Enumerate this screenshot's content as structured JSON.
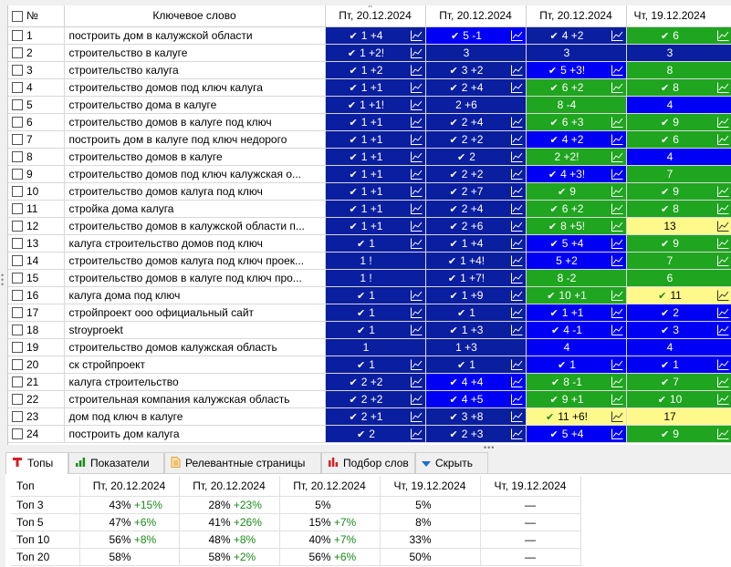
{
  "grid": {
    "headers": {
      "num": "№",
      "keyword": "Ключевое слово",
      "dates": [
        "Пт, 20.12.2024",
        "Пт, 20.12.2024",
        "Пт, 20.12.2024",
        "Чт, 19.12.2024"
      ]
    },
    "colors": {
      "dark_blue": "#0a1ea0",
      "blue": "#0000f5",
      "green": "#1fa51f",
      "yellow": "#fff98c"
    },
    "rows": [
      {
        "n": "1",
        "kw": "построить дом в калужской области",
        "c": [
          [
            "db",
            "✔",
            "1 +4",
            1
          ],
          [
            "b",
            "✔",
            "5 -1",
            1
          ],
          [
            "db",
            "✔",
            "4 +2",
            1
          ],
          [
            "g",
            "✔",
            "6",
            1
          ]
        ]
      },
      {
        "n": "2",
        "kw": "строительство в калуге",
        "c": [
          [
            "db",
            "✔",
            "1 +2!",
            1
          ],
          [
            "db",
            "",
            "3",
            0
          ],
          [
            "db",
            "",
            "3",
            0
          ],
          [
            "db",
            "",
            "3",
            0
          ]
        ]
      },
      {
        "n": "3",
        "kw": "строительство калуга",
        "c": [
          [
            "db",
            "✔",
            "1 +2",
            1
          ],
          [
            "db",
            "✔",
            "3 +2",
            1
          ],
          [
            "b",
            "✔",
            "5 +3!",
            1
          ],
          [
            "g",
            "",
            "8",
            0
          ]
        ]
      },
      {
        "n": "4",
        "kw": "строительство домов под ключ калуга",
        "c": [
          [
            "db",
            "✔",
            "1 +1",
            1
          ],
          [
            "db",
            "✔",
            "2 +4",
            1
          ],
          [
            "g",
            "✔",
            "6 +2",
            1
          ],
          [
            "g",
            "✔",
            "8",
            1
          ]
        ]
      },
      {
        "n": "5",
        "kw": "строительство дома в калуге",
        "c": [
          [
            "db",
            "✔",
            "1 +1!",
            1
          ],
          [
            "db",
            "",
            "2 +6",
            0
          ],
          [
            "g",
            "",
            "8 -4",
            0
          ],
          [
            "b",
            "",
            "4",
            0
          ]
        ]
      },
      {
        "n": "6",
        "kw": "строительство домов в калуге под ключ",
        "c": [
          [
            "db",
            "✔",
            "1 +1",
            1
          ],
          [
            "db",
            "✔",
            "2 +4",
            1
          ],
          [
            "g",
            "✔",
            "6 +3",
            1
          ],
          [
            "g",
            "✔",
            "9",
            1
          ]
        ]
      },
      {
        "n": "7",
        "kw": "построить дом в калуге под ключ недорого",
        "c": [
          [
            "db",
            "✔",
            "1 +1",
            1
          ],
          [
            "db",
            "✔",
            "2 +2",
            1
          ],
          [
            "b",
            "✔",
            "4 +2",
            1
          ],
          [
            "g",
            "✔",
            "6",
            1
          ]
        ]
      },
      {
        "n": "8",
        "kw": "строительство домов в калуге",
        "c": [
          [
            "db",
            "✔",
            "1 +1",
            1
          ],
          [
            "db",
            "✔",
            "2",
            1
          ],
          [
            "g",
            "",
            "2 +2!",
            1
          ],
          [
            "b",
            "",
            "4",
            0
          ]
        ]
      },
      {
        "n": "9",
        "kw": "строительство домов под ключ калужская о...",
        "c": [
          [
            "db",
            "✔",
            "1 +1",
            1
          ],
          [
            "db",
            "✔",
            "2 +2",
            1
          ],
          [
            "b",
            "✔",
            "4 +3!",
            1
          ],
          [
            "g",
            "",
            "7",
            0
          ]
        ]
      },
      {
        "n": "10",
        "kw": "строительство домов калуга под ключ",
        "c": [
          [
            "db",
            "✔",
            "1 +1",
            1
          ],
          [
            "db",
            "✔",
            "2 +7",
            1
          ],
          [
            "g",
            "✔",
            "9",
            1
          ],
          [
            "g",
            "✔",
            "9",
            1
          ]
        ]
      },
      {
        "n": "11",
        "kw": "стройка дома калуга",
        "c": [
          [
            "db",
            "✔",
            "1 +1",
            1
          ],
          [
            "db",
            "✔",
            "2 +4",
            1
          ],
          [
            "g",
            "✔",
            "6 +2",
            1
          ],
          [
            "g",
            "✔",
            "8",
            1
          ]
        ]
      },
      {
        "n": "12",
        "kw": "строительство домов в калужской области п...",
        "c": [
          [
            "db",
            "✔",
            "1 +1",
            1
          ],
          [
            "db",
            "✔",
            "2 +6",
            1
          ],
          [
            "g",
            "✔",
            "8 +5!",
            1
          ],
          [
            "y",
            "",
            "13",
            1
          ]
        ]
      },
      {
        "n": "13",
        "kw": "калуга строительство домов под ключ",
        "c": [
          [
            "db",
            "✔",
            "1",
            1
          ],
          [
            "db",
            "✔",
            "1 +4",
            1
          ],
          [
            "b",
            "✔",
            "5 +4",
            1
          ],
          [
            "g",
            "✔",
            "9",
            1
          ]
        ]
      },
      {
        "n": "14",
        "kw": "строительство домов калуга под ключ проек...",
        "c": [
          [
            "db",
            "",
            "1 !",
            0
          ],
          [
            "db",
            "✔",
            "1 +4!",
            1
          ],
          [
            "b",
            "",
            "5 +2",
            1
          ],
          [
            "g",
            "",
            "7",
            1
          ]
        ]
      },
      {
        "n": "15",
        "kw": "строительство домов в калуге под ключ про...",
        "c": [
          [
            "db",
            "",
            "1 !",
            0
          ],
          [
            "db",
            "✔",
            "1 +7!",
            1
          ],
          [
            "g",
            "",
            "8 -2",
            0
          ],
          [
            "g",
            "",
            "6",
            0
          ]
        ]
      },
      {
        "n": "16",
        "kw": "калуга дома под ключ",
        "c": [
          [
            "db",
            "✔",
            "1",
            1
          ],
          [
            "db",
            "✔",
            "1 +9",
            1
          ],
          [
            "g",
            "✔",
            "10 +1",
            1
          ],
          [
            "y",
            "✔",
            "11",
            1
          ]
        ]
      },
      {
        "n": "17",
        "kw": "стройпроект ооо официальный сайт",
        "c": [
          [
            "db",
            "✔",
            "1",
            1
          ],
          [
            "db",
            "✔",
            "1",
            1
          ],
          [
            "b",
            "✔",
            "1 +1",
            1
          ],
          [
            "b",
            "✔",
            "2",
            1
          ]
        ]
      },
      {
        "n": "18",
        "kw": "stroyproekt",
        "c": [
          [
            "db",
            "✔",
            "1",
            1
          ],
          [
            "db",
            "✔",
            "1 +3",
            1
          ],
          [
            "b",
            "✔",
            "4 -1",
            1
          ],
          [
            "b",
            "✔",
            "3",
            1
          ]
        ]
      },
      {
        "n": "19",
        "kw": "строительство домов калужская область",
        "c": [
          [
            "db",
            "",
            "1",
            0
          ],
          [
            "db",
            "",
            "1 +3",
            0
          ],
          [
            "b",
            "",
            "4",
            0
          ],
          [
            "b",
            "",
            "4",
            0
          ]
        ]
      },
      {
        "n": "20",
        "kw": "ск стройпроект",
        "c": [
          [
            "db",
            "✔",
            "1",
            1
          ],
          [
            "db",
            "✔",
            "1",
            1
          ],
          [
            "b",
            "✔",
            "1",
            1
          ],
          [
            "b",
            "✔",
            "1",
            1
          ]
        ]
      },
      {
        "n": "21",
        "kw": "калуга строительство",
        "c": [
          [
            "db",
            "✔",
            "2 +2",
            1
          ],
          [
            "b",
            "✔",
            "4 +4",
            1
          ],
          [
            "g",
            "✔",
            "8 -1",
            1
          ],
          [
            "g",
            "✔",
            "7",
            1
          ]
        ]
      },
      {
        "n": "22",
        "kw": "строительная компания калужская область",
        "c": [
          [
            "db",
            "✔",
            "2 +2",
            1
          ],
          [
            "b",
            "✔",
            "4 +5",
            1
          ],
          [
            "g",
            "✔",
            "9 +1",
            1
          ],
          [
            "g",
            "✔",
            "10",
            1
          ]
        ]
      },
      {
        "n": "23",
        "kw": "дом под ключ в калуге",
        "c": [
          [
            "db",
            "✔",
            "2 +1",
            1
          ],
          [
            "db",
            "✔",
            "3 +8",
            1
          ],
          [
            "y",
            "✔",
            "11 +6!",
            1
          ],
          [
            "y",
            "",
            "17",
            0
          ]
        ]
      },
      {
        "n": "24",
        "kw": "построить дом калуга",
        "c": [
          [
            "db",
            "✔",
            "2",
            1
          ],
          [
            "db",
            "✔",
            "2 +3",
            1
          ],
          [
            "b",
            "✔",
            "5 +4",
            1
          ],
          [
            "g",
            "✔",
            "9",
            1
          ]
        ]
      }
    ]
  },
  "tabs": [
    {
      "label": "Топы",
      "icon": "tops-icon"
    },
    {
      "label": "Показатели",
      "icon": "bar-chart-icon"
    },
    {
      "label": "Релевантные страницы",
      "icon": "page-icon"
    },
    {
      "label": "Подбор слов",
      "icon": "wordstat-icon"
    },
    {
      "label": "Скрыть",
      "icon": "hide-arrow-icon"
    }
  ],
  "tops": {
    "header": [
      "Топ",
      "Пт, 20.12.2024",
      "Пт, 20.12.2024",
      "Пт, 20.12.2024",
      "Чт, 19.12.2024",
      "Чт, 19.12.2024"
    ],
    "rows": [
      {
        "label": "Топ 3",
        "cells": [
          [
            "43%",
            "+15%"
          ],
          [
            "28%",
            "+23%"
          ],
          [
            "5%",
            ""
          ],
          [
            "5%",
            ""
          ],
          [
            "—",
            ""
          ]
        ]
      },
      {
        "label": "Топ 5",
        "cells": [
          [
            "47%",
            "+6%"
          ],
          [
            "41%",
            "+26%"
          ],
          [
            "15%",
            "+7%"
          ],
          [
            "8%",
            ""
          ],
          [
            "—",
            ""
          ]
        ]
      },
      {
        "label": "Топ 10",
        "cells": [
          [
            "56%",
            "+8%"
          ],
          [
            "48%",
            "+8%"
          ],
          [
            "40%",
            "+7%"
          ],
          [
            "33%",
            ""
          ],
          [
            "—",
            ""
          ]
        ]
      },
      {
        "label": "Топ 20",
        "cells": [
          [
            "58%",
            ""
          ],
          [
            "58%",
            "+2%"
          ],
          [
            "56%",
            "+6%"
          ],
          [
            "50%",
            ""
          ],
          [
            "—",
            ""
          ]
        ]
      }
    ]
  }
}
